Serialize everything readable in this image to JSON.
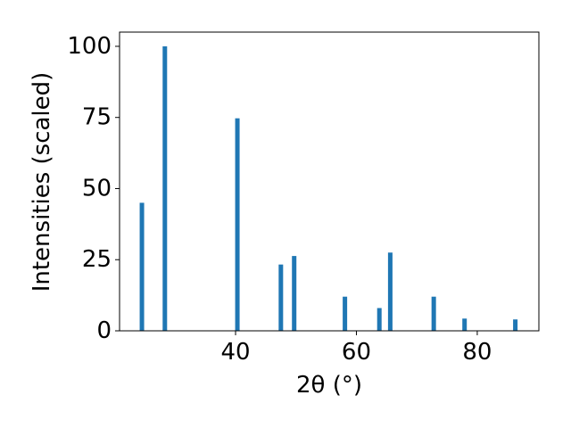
{
  "chart_data": {
    "type": "bar",
    "x": [
      24.5,
      28.3,
      40.3,
      47.5,
      49.7,
      58.1,
      63.8,
      65.6,
      72.8,
      77.9,
      86.3
    ],
    "values": [
      45,
      100,
      74.7,
      23.3,
      26.3,
      12,
      8,
      27.5,
      12,
      4.3,
      4
    ],
    "color": "#1f77b4",
    "xlabel": "2θ (°)",
    "ylabel": "Intensities (scaled)",
    "xlim": [
      20.8,
      90.2
    ],
    "xticks": [
      40,
      60,
      80
    ],
    "ylim": [
      0,
      105
    ],
    "yticks": [
      0,
      25,
      50,
      75,
      100
    ],
    "grid": false
  }
}
